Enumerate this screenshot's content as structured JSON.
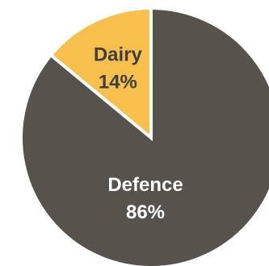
{
  "chart_data": {
    "type": "pie",
    "title": "",
    "slices": [
      {
        "label": "Dairy",
        "value": 14,
        "display": "14%",
        "color": "#F7C04D",
        "text_color": "#3F3F3F"
      },
      {
        "label": "Defence",
        "value": 86,
        "display": "86%",
        "color": "#57534C",
        "text_color": "#FFFFFF"
      }
    ],
    "start_angle_deg": 0,
    "direction": "counterclockwise",
    "slice_border_color": "#FFFFFF",
    "legend": "none"
  }
}
